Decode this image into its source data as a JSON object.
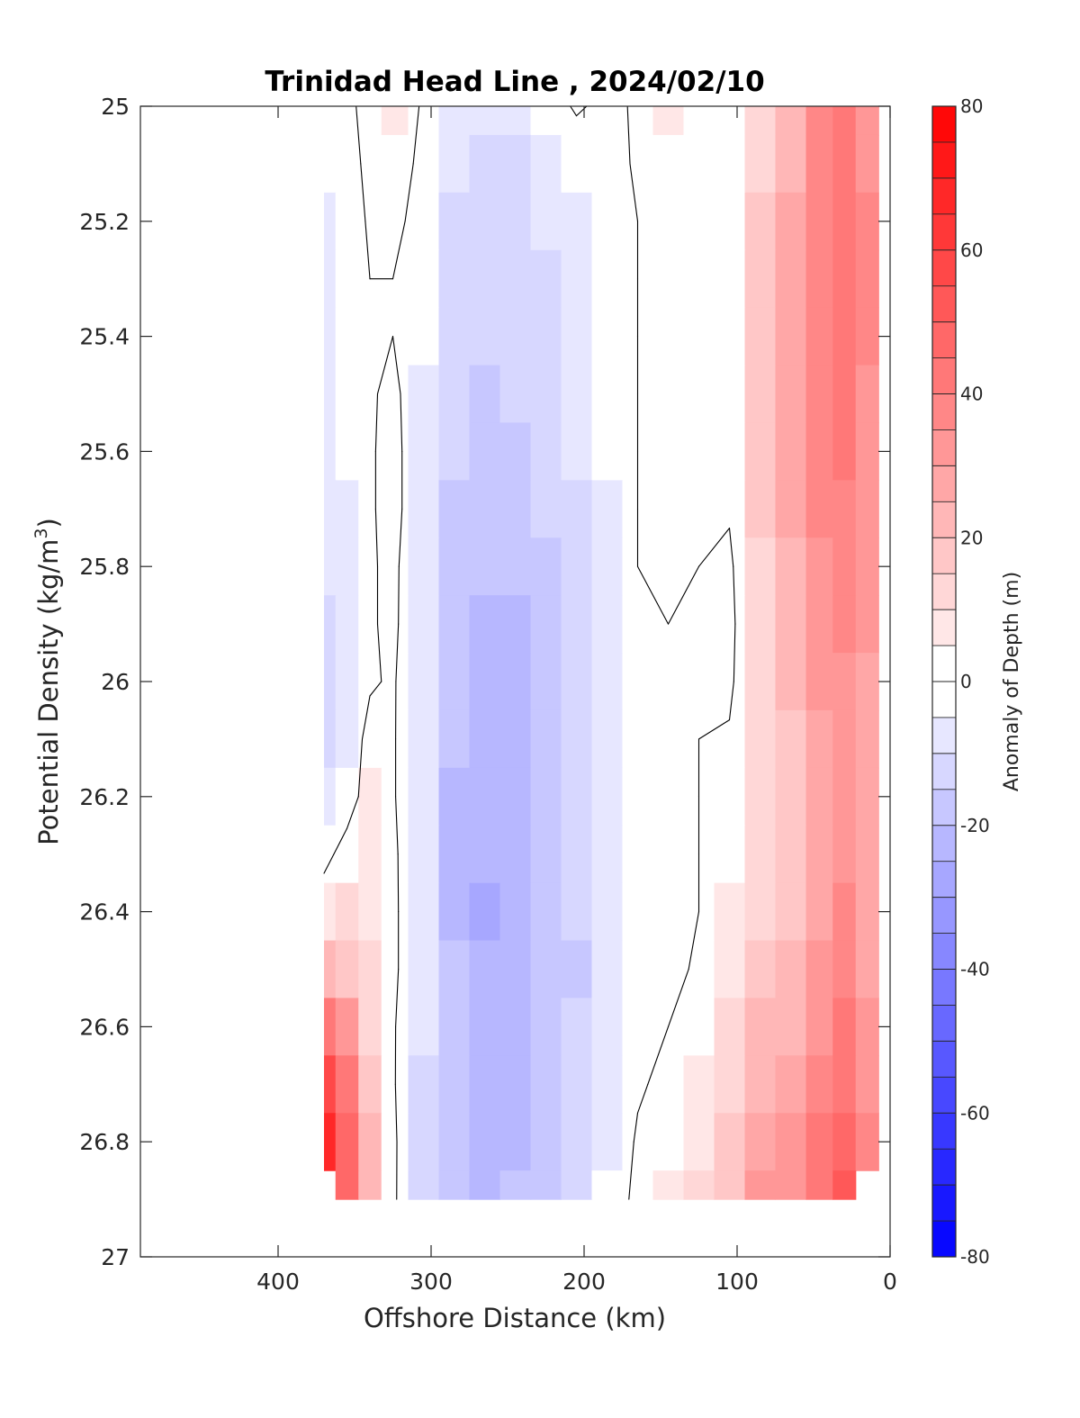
{
  "chart_data": {
    "type": "heatmap",
    "title": "Trinidad Head Line , 2024/02/10",
    "xlabel": "Offshore Distance (km)",
    "ylabel": "Potential Density (kg/m³)",
    "ylabel_main": "Potential Density (kg/m",
    "ylabel_sup": "3",
    "ylabel_tail": ")",
    "xlim": [
      490,
      0
    ],
    "ylim": [
      25,
      27
    ],
    "x_reversed": true,
    "y_reversed": true,
    "xticks": [
      400,
      300,
      200,
      100,
      0
    ],
    "yticks": [
      25,
      25.2,
      25.4,
      25.6,
      25.8,
      26,
      26.2,
      26.4,
      26.6,
      26.8,
      27
    ],
    "xtick_labels": [
      "400",
      "300",
      "200",
      "100",
      "0"
    ],
    "ytick_labels": [
      "25",
      "25.2",
      "25.4",
      "25.6",
      "25.8",
      "26",
      "26.2",
      "26.4",
      "26.6",
      "26.8",
      "27"
    ],
    "colorbar": {
      "label": "Anomaly of Depth (m)",
      "range": [
        -80,
        80
      ],
      "step": 5,
      "ticks": [
        80,
        60,
        40,
        20,
        0,
        -20,
        -40,
        -60,
        -80
      ],
      "tick_labels": [
        "80",
        "60",
        "40",
        "20",
        "0",
        "-20",
        "-40",
        "-60",
        "-80"
      ],
      "colormap": "blue-white-red",
      "color_negative": "#0000ff",
      "color_zero": "#ffffff",
      "color_positive": "#ff0000"
    },
    "zero_contour": true,
    "grid": false,
    "columns_x": [
      370,
      355,
      340,
      325,
      305,
      285,
      265,
      245,
      225,
      205,
      185,
      165,
      145,
      125,
      105,
      85,
      65,
      45,
      30,
      15
    ],
    "rows_y": [
      25.0,
      25.1,
      25.2,
      25.3,
      25.4,
      25.5,
      25.6,
      25.7,
      25.8,
      25.9,
      26.0,
      26.1,
      26.2,
      26.3,
      26.4,
      26.5,
      26.6,
      26.7,
      26.8,
      26.9
    ],
    "anomaly_m": [
      [
        -3,
        -2,
        3,
        6,
        -1,
        -7,
        -8,
        -7,
        -4,
        1,
        -2,
        1,
        5,
        3,
        1,
        11,
        22,
        37,
        43,
        33
      ],
      [
        -5,
        -3,
        2,
        4,
        -2,
        -10,
        -11,
        -11,
        -9,
        -5,
        -3,
        1,
        4,
        3,
        1,
        14,
        24,
        38,
        44,
        34
      ],
      [
        -6,
        -4,
        1,
        2,
        -3,
        -11,
        -12,
        -12,
        -10,
        -7,
        -4,
        0,
        2,
        2,
        1,
        16,
        26,
        38,
        43,
        36
      ],
      [
        -6,
        -4,
        0,
        0,
        -4,
        -12,
        -13,
        -13,
        -11,
        -9,
        -5,
        0,
        1,
        1,
        1,
        17,
        27,
        39,
        43,
        35
      ],
      [
        -7,
        -4,
        -1,
        0,
        -5,
        -13,
        -14,
        -14,
        -12,
        -9,
        -5,
        0,
        1,
        1,
        1,
        18,
        28,
        39,
        44,
        35
      ],
      [
        -8,
        -5,
        -1,
        2,
        -6,
        -14,
        -16,
        -15,
        -13,
        -10,
        -5,
        0,
        1,
        1,
        1,
        18,
        28,
        38,
        42,
        34
      ],
      [
        -9,
        -5,
        -1,
        3,
        -7,
        -15,
        -17,
        -16,
        -14,
        -10,
        -5,
        0,
        1,
        1,
        1,
        17,
        27,
        37,
        40,
        33
      ],
      [
        -10,
        -6,
        -1,
        3,
        -7,
        -16,
        -18,
        -17,
        -15,
        -11,
        -6,
        0,
        1,
        1,
        1,
        16,
        26,
        35,
        38,
        32
      ],
      [
        -10,
        -6,
        -1,
        2,
        -8,
        -17,
        -19,
        -19,
        -16,
        -12,
        -6,
        0,
        1,
        0,
        -2,
        14,
        24,
        34,
        37,
        31
      ],
      [
        -11,
        -6,
        -1,
        2,
        -9,
        -18,
        -21,
        -21,
        -18,
        -13,
        -6,
        0,
        0,
        0,
        -3,
        13,
        22,
        32,
        36,
        30
      ],
      [
        -12,
        -7,
        -1,
        1,
        -9,
        -19,
        -22,
        -22,
        -19,
        -14,
        -7,
        0,
        0,
        0,
        -2,
        12,
        20,
        30,
        34,
        29
      ],
      [
        -11,
        -6,
        3,
        1,
        -10,
        -20,
        -23,
        -22,
        -19,
        -14,
        -8,
        -1,
        0,
        0,
        1,
        12,
        18,
        28,
        33,
        28
      ],
      [
        -9,
        -5,
        5,
        1,
        -10,
        -21,
        -25,
        -23,
        -20,
        -14,
        -8,
        -3,
        -1,
        0,
        2,
        12,
        17,
        27,
        32,
        27
      ],
      [
        -3,
        4,
        7,
        2,
        -10,
        -21,
        -24,
        -23,
        -20,
        -15,
        -9,
        -4,
        -2,
        0,
        4,
        14,
        17,
        27,
        33,
        27
      ],
      [
        6,
        10,
        8,
        2,
        -9,
        -21,
        -26,
        -23,
        -20,
        -15,
        -10,
        -5,
        -3,
        0,
        5,
        14,
        18,
        28,
        35,
        28
      ],
      [
        22,
        18,
        11,
        2,
        -9,
        -20,
        -24,
        -22,
        -20,
        -16,
        -10,
        -5,
        -2,
        1,
        7,
        16,
        20,
        30,
        37,
        29
      ],
      [
        40,
        30,
        14,
        1,
        -10,
        -17,
        -22,
        -22,
        -19,
        -15,
        -10,
        -3,
        0,
        3,
        10,
        20,
        24,
        34,
        40,
        31
      ],
      [
        56,
        40,
        17,
        1,
        -11,
        -19,
        -23,
        -22,
        -19,
        -14,
        -8,
        -1,
        2,
        6,
        13,
        24,
        28,
        38,
        44,
        33
      ],
      [
        66,
        48,
        20,
        2,
        -13,
        -20,
        -23,
        -22,
        -18,
        -13,
        -7,
        1,
        4,
        9,
        16,
        28,
        32,
        41,
        48,
        35
      ],
      [
        null,
        46,
        21,
        2,
        -14,
        -20,
        -22,
        -20,
        -16,
        -11,
        -5,
        2,
        6,
        11,
        17,
        30,
        34,
        42,
        50,
        null
      ]
    ]
  }
}
